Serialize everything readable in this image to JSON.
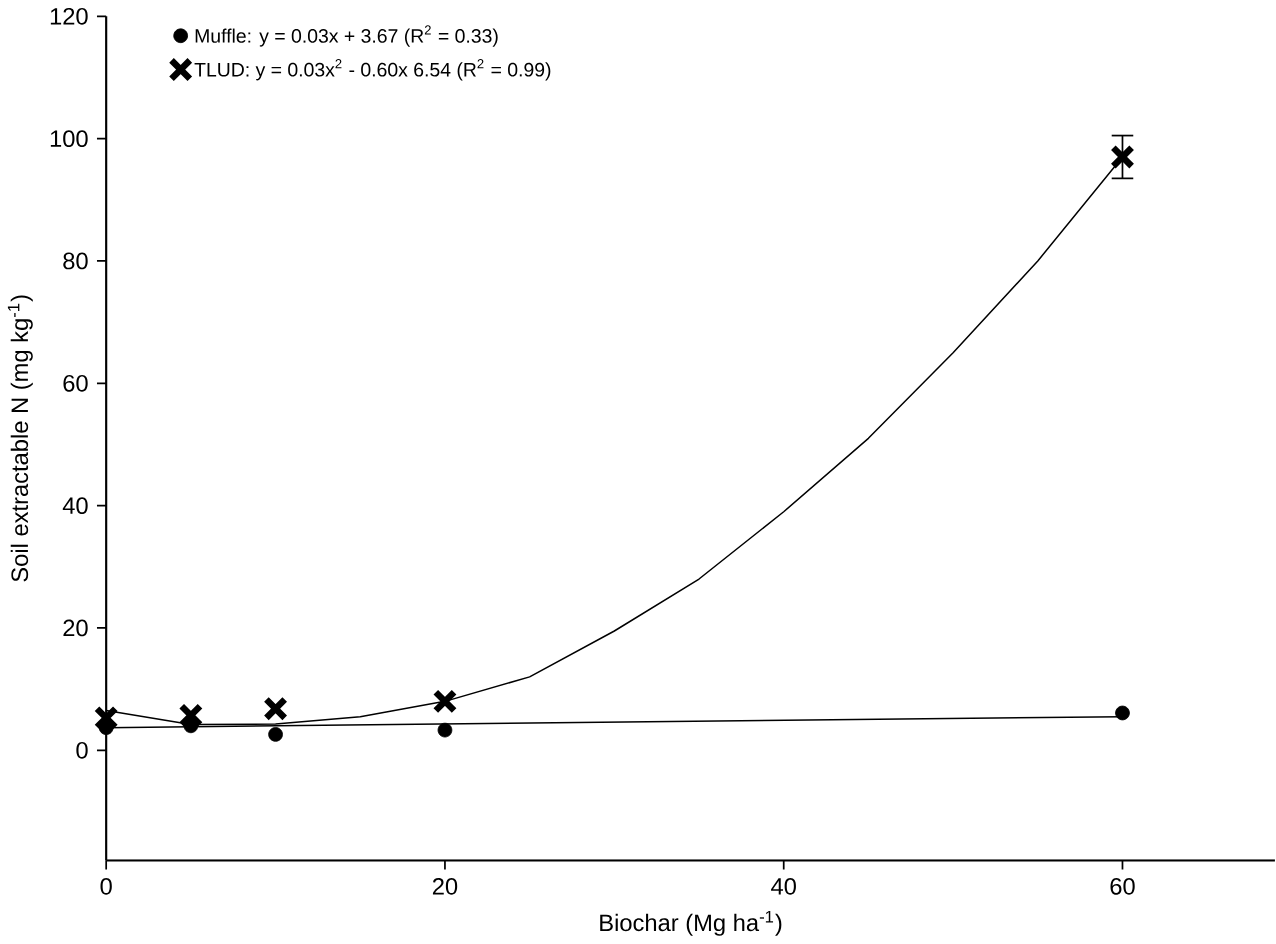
{
  "chart_data": {
    "type": "scatter",
    "xlabel": "Biochar (Mg ha$^{-1}$)",
    "ylabel": "Soil extractable N (mg kg$^{-1}$)",
    "x": [
      0,
      5,
      10,
      20,
      60
    ],
    "series": [
      {
        "name": "Muffle: y = 0.03x + 3.67 (R$^{2}$ = 0.33)",
        "color": "#000000",
        "marker": "circle",
        "values": [
          3.7,
          4.0,
          2.6,
          3.3,
          6.1
        ],
        "errors": [
          null,
          null,
          null,
          null,
          null
        ]
      },
      {
        "name": "TLUD: y = 0.03x$^{2}$ - 0.60x  6.54 (R$^{2}$ = 0.99)",
        "color": "#000000",
        "marker": "cross",
        "values": [
          5.3,
          5.7,
          6.8,
          8.0,
          97
        ],
        "errors": [
          null,
          null,
          null,
          null,
          3.5
        ]
      },
      {
        "type": "line",
        "color": "#000000",
        "marker": "none",
        "x": [
          0,
          60
        ],
        "values": [
          3.7,
          5.5
        ]
      },
      {
        "type": "line",
        "color": "#000000",
        "marker": "none",
        "x": [
          0,
          5,
          10,
          15,
          20,
          25,
          30,
          35,
          40,
          45,
          50,
          55,
          60
        ],
        "values": [
          6.5,
          4.2,
          4.3,
          5.5,
          8,
          12,
          19.5,
          28,
          39,
          51,
          65,
          80,
          97
        ]
      }
    ],
    "xlim": [
      0,
      69
    ],
    "ylim": [
      -18,
      120
    ],
    "xticks": [
      0,
      20,
      40,
      60
    ],
    "yticks": [
      0,
      20,
      40,
      60,
      80,
      100,
      120
    ],
    "legend": "top left",
    "grid": false
  }
}
